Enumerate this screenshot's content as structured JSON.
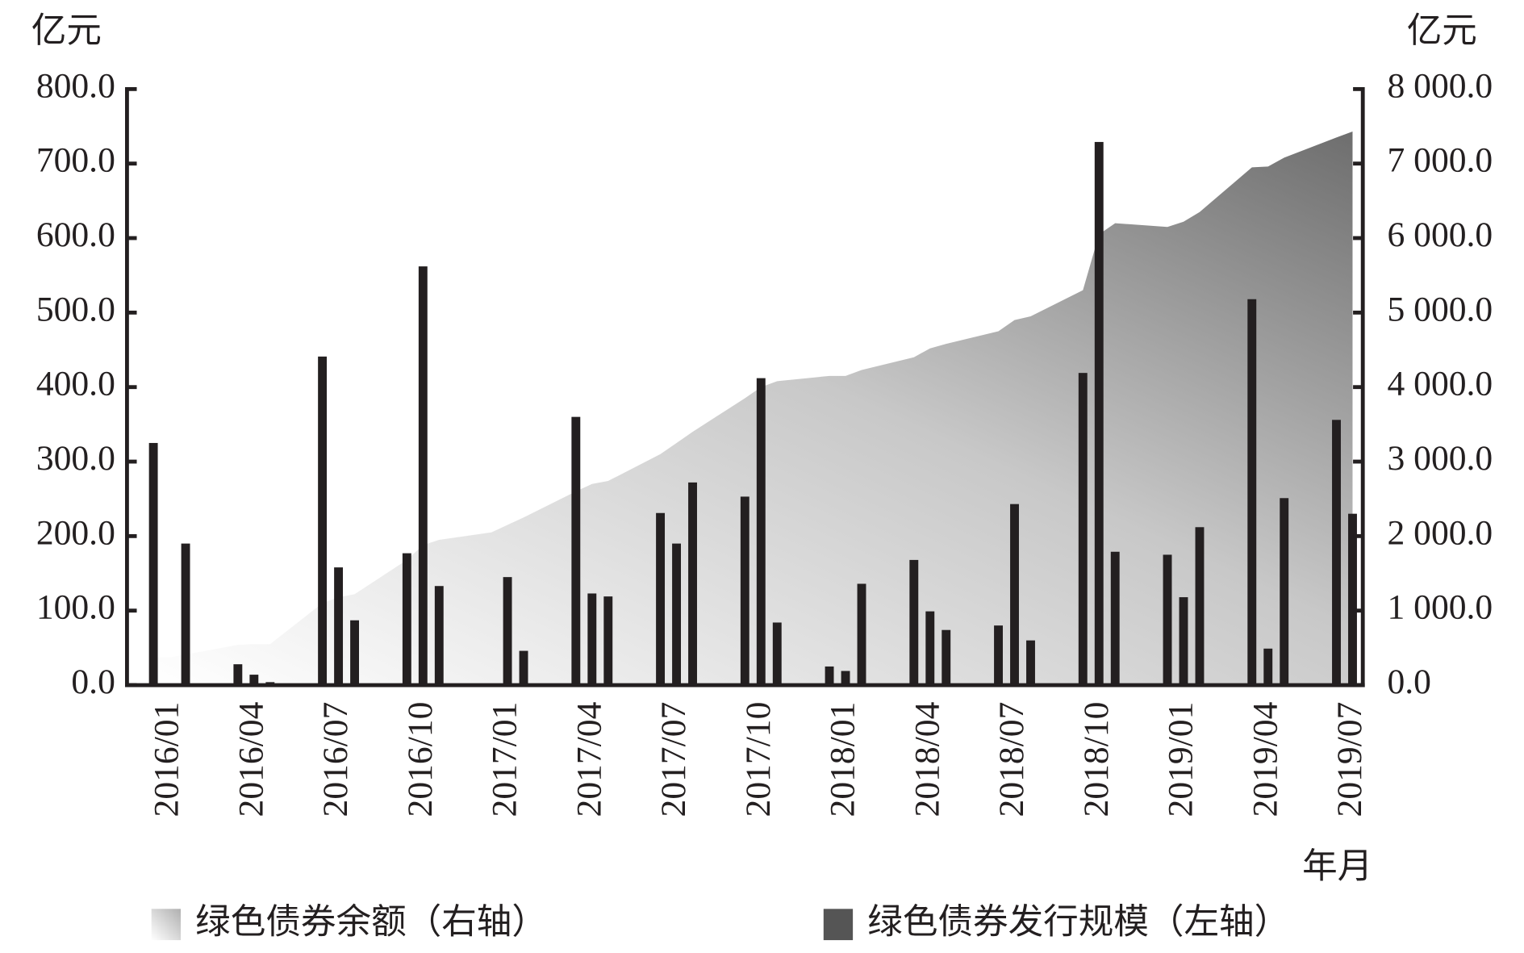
{
  "chart_data": {
    "type": "bar",
    "ylabel": "亿元",
    "y2label": "亿元",
    "xlabel": "年月",
    "categories": [
      "2016/01",
      null,
      null,
      "2016/04",
      null,
      null,
      "2016/07",
      null,
      null,
      "2016/10",
      null,
      null,
      "2017/01",
      null,
      null,
      "2017/04",
      null,
      null,
      "2017/07",
      null,
      null,
      "2017/10",
      null,
      null,
      "2018/01",
      null,
      null,
      "2018/04",
      null,
      null,
      "2018/07",
      null,
      null,
      "2018/10",
      null,
      null,
      "2019/01",
      null,
      null,
      "2019/04",
      null,
      null,
      "2019/07",
      null
    ],
    "series": [
      {
        "name": "绿色债券余额（右轴）",
        "type": "area",
        "axis": "y2",
        "color": "#7a7a7a",
        "values": [
          370,
          370,
          410,
          540,
          550,
          550,
          1100,
          1180,
          1220,
          1680,
          1880,
          1950,
          2050,
          2150,
          2250,
          2600,
          2700,
          2740,
          3100,
          3250,
          3400,
          3850,
          4000,
          4080,
          4150,
          4150,
          4230,
          4400,
          4520,
          4580,
          4750,
          4900,
          4950,
          5300,
          6050,
          6200,
          6150,
          6220,
          6350,
          6950,
          6960,
          7080,
          7350,
          7430
        ]
      },
      {
        "name": "绿色债券发行规模（左轴）",
        "type": "bar",
        "color": "#231f20",
        "values": [
          325,
          null,
          190,
          28,
          14,
          4,
          441,
          158,
          87,
          177,
          562,
          133,
          null,
          145,
          46,
          360,
          123,
          119,
          231,
          190,
          272,
          253,
          412,
          84,
          25,
          19,
          136,
          168,
          99,
          74,
          80,
          243,
          60,
          419,
          729,
          179,
          175,
          118,
          212,
          518,
          49,
          251,
          356,
          230
        ]
      }
    ],
    "ylim": [
      0,
      800
    ],
    "yticks": [
      {
        "value": 0,
        "label": "0.0"
      },
      {
        "value": 100,
        "label": "100.0"
      },
      {
        "value": 200,
        "label": "200.0"
      },
      {
        "value": 300,
        "label": "300.0"
      },
      {
        "value": 400,
        "label": "400.0"
      },
      {
        "value": 500,
        "label": "500.0"
      },
      {
        "value": 600,
        "label": "600.0"
      },
      {
        "value": 700,
        "label": "700.0"
      },
      {
        "value": 800,
        "label": "800.0"
      }
    ],
    "y2lim": [
      0,
      8000
    ],
    "y2ticks": [
      {
        "value": 0,
        "label": "0.0"
      },
      {
        "value": 1000,
        "label": "1 000.0"
      },
      {
        "value": 2000,
        "label": "2 000.0"
      },
      {
        "value": 3000,
        "label": "3 000.0"
      },
      {
        "value": 4000,
        "label": "4 000.0"
      },
      {
        "value": 5000,
        "label": "5 000.0"
      },
      {
        "value": 6000,
        "label": "6 000.0"
      },
      {
        "value": 7000,
        "label": "7 000.0"
      },
      {
        "value": 8000,
        "label": "8 000.0"
      }
    ]
  }
}
